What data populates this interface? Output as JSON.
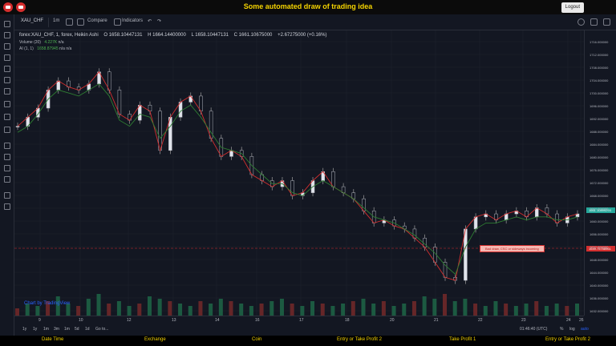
{
  "app": {
    "title": "Some automated draw of trading idea",
    "logout_label": "Logout"
  },
  "toolbar": {
    "symbol": "XAU_CHF",
    "interval": "1m",
    "compare_label": "Compare",
    "indicators_label": "Indicators"
  },
  "legend": {
    "series_name": "forex:XAU_CHF, 1, forex, Heikin Ashi",
    "open": "O 1658.10447131",
    "high": "H 1664.14400000",
    "low": "L 1658.10447131",
    "close": "C 1661.10675000",
    "change": "+2.67275000 (+0.16%)",
    "volume_label": "Volume (20)",
    "volume_value": "4.227K",
    "volume_na": "n/a",
    "ai_label": "AI (1, 1)",
    "ai_value": "1658.87945",
    "ai_na1": "n/a",
    "ai_na2": "n/a"
  },
  "watermark": "Chart by TradingView",
  "annotation": "Bad draw, CSC or sideways incoming",
  "price_axis": {
    "ticks": [
      "1716.000000",
      "1712.000000",
      "1708.000000",
      "1704.000000",
      "1700.000000",
      "1696.000000",
      "1692.000000",
      "1688.000000",
      "1684.000000",
      "1680.000000",
      "1676.000000",
      "1672.000000",
      "1668.000000",
      "1664.000000",
      "1660.000000",
      "1656.000000",
      "1652.000000",
      "1648.000000",
      "1644.000000",
      "1640.000000",
      "1636.000000",
      "1632.000000"
    ],
    "last_price": "1661.10899293",
    "marker_price": "1649.75758961"
  },
  "time_axis": {
    "ticks": [
      "9",
      "10",
      "12",
      "13",
      "14",
      "16",
      "17",
      "18",
      "20",
      "21",
      "22",
      "23",
      "24",
      "26"
    ]
  },
  "timeframes": [
    "1y",
    "1y",
    "1m",
    "3m",
    "1m",
    "5d",
    "1d",
    "Go to..."
  ],
  "status": {
    "clock": "01:46:40 (UTC)",
    "pct": "%",
    "log": "log",
    "auto": "auto"
  },
  "footer_tabs": [
    "Date Time",
    "Exchange",
    "Coin",
    "Entry or Take Profit 2",
    "Take Profit 1",
    "Entry or Take Profit 2"
  ],
  "chart_data": {
    "type": "line",
    "title": "",
    "xlabel": "",
    "ylabel": "",
    "ylim": [
      1630,
      1718
    ],
    "x_ticks": [
      "9",
      "10",
      "12",
      "13",
      "14",
      "16",
      "17",
      "18",
      "20",
      "21",
      "22",
      "23",
      "24",
      "26"
    ],
    "series": [
      {
        "name": "",
        "values": [
          1690,
          1693,
          1696,
          1702,
          1705,
          1703,
          1702,
          1704,
          1708,
          1702,
          1694,
          1692,
          1697,
          1695,
          1682,
          1693,
          1698,
          1700,
          1695,
          1686,
          1680,
          1682,
          1680,
          1674,
          1672,
          1670,
          1672,
          1667,
          1668,
          1672,
          1675,
          1670,
          1668,
          1666,
          1662,
          1658,
          1659,
          1657,
          1656,
          1653,
          1650,
          1645,
          1640,
          1639,
          1656,
          1660,
          1661,
          1659,
          1661,
          1662,
          1660,
          1663,
          1661,
          1658,
          1660,
          1661
        ]
      },
      {
        "name": "",
        "values": [
          1688,
          1690,
          1694,
          1699,
          1702,
          1701,
          1700,
          1702,
          1704,
          1700,
          1692,
          1690,
          1694,
          1693,
          1686,
          1690,
          1695,
          1697,
          1693,
          1688,
          1683,
          1682,
          1681,
          1677,
          1674,
          1671,
          1671,
          1668,
          1667,
          1670,
          1672,
          1670,
          1668,
          1666,
          1663,
          1660,
          1659,
          1658,
          1656,
          1654,
          1651,
          1648,
          1644,
          1641,
          1650,
          1656,
          1658,
          1658,
          1659,
          1660,
          1659,
          1660,
          1660,
          1659,
          1659,
          1660
        ]
      }
    ],
    "series_colors": [
      "#d32f2f",
      "#2e7d32"
    ],
    "volume": [
      3,
      5,
      4,
      6,
      8,
      5,
      4,
      7,
      9,
      5,
      6,
      4,
      5,
      8,
      7,
      6,
      5,
      4,
      6,
      5,
      7,
      6,
      5,
      4,
      5,
      6,
      7,
      5,
      4,
      6,
      5,
      4,
      5,
      6,
      7,
      5,
      6,
      4,
      5,
      6,
      8,
      7,
      9,
      6,
      7,
      5,
      4,
      6,
      5,
      4,
      5,
      6,
      4,
      5,
      4,
      5
    ],
    "grid": true
  }
}
